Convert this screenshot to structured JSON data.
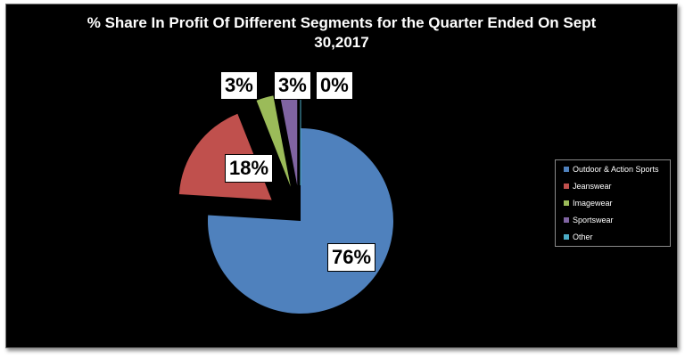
{
  "chart_data": {
    "type": "pie",
    "title_lines": [
      "% Share In Profit Of Different Segments for the Quarter Ended On Sept",
      "30,2017"
    ],
    "slices": [
      {
        "name": "Outdoor & Action Sports",
        "value": 76,
        "label": "76%",
        "color": "#4f81bd",
        "exploded": false
      },
      {
        "name": "Jeanswear",
        "value": 18,
        "label": "18%",
        "color": "#c0504d",
        "exploded": true
      },
      {
        "name": "Imagewear",
        "value": 3,
        "label": "3%",
        "color": "#9bbb59",
        "exploded": true
      },
      {
        "name": "Sportswear",
        "value": 3,
        "label": "3%",
        "color": "#8064a2",
        "exploded": true
      },
      {
        "name": "Other",
        "value": 0,
        "label": "0%",
        "color": "#4bacc6",
        "exploded": true
      }
    ],
    "legend_position": "right"
  }
}
